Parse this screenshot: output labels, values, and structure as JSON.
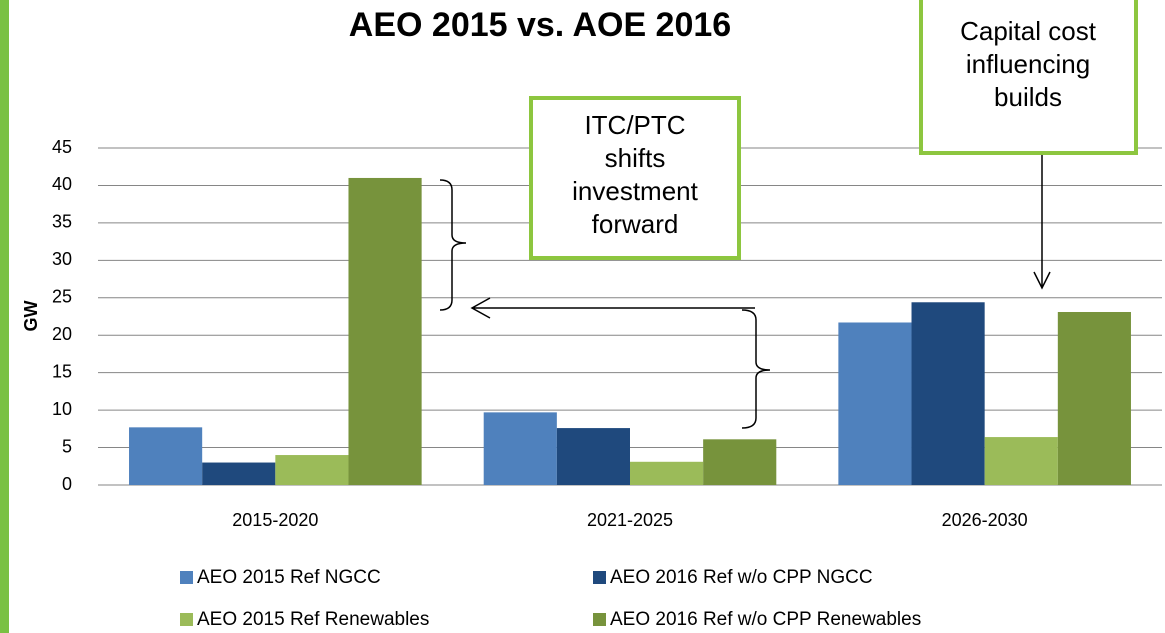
{
  "chart_data": {
    "type": "bar",
    "title": "AEO 2015 vs. AOE 2016",
    "y_label": "GW",
    "categories": [
      "2015-2020",
      "2021-2025",
      "2026-2030"
    ],
    "series": [
      {
        "name": "AEO 2015 Ref NGCC",
        "color": "#4f81bd",
        "values": [
          7.7,
          9.7,
          21.7
        ]
      },
      {
        "name": "AEO 2016 Ref w/o CPP NGCC",
        "color": "#1f497d",
        "values": [
          3.0,
          7.6,
          24.4
        ]
      },
      {
        "name": "AEO 2015 Ref Renewables",
        "color": "#9bbb59",
        "values": [
          4.0,
          3.1,
          6.4
        ]
      },
      {
        "name": "AEO 2016 Ref w/o CPP Renewables",
        "color": "#77933c",
        "values": [
          41,
          6.1,
          23.1
        ]
      }
    ],
    "ylim": [
      0,
      45
    ],
    "yticks": [
      0,
      5,
      10,
      15,
      20,
      25,
      30,
      35,
      40,
      45
    ],
    "grid": true,
    "annotations": [
      {
        "lines": [
          "ITC/PTC",
          "shifts",
          "investment",
          "forward"
        ]
      },
      {
        "lines": [
          "Capital cost",
          "influencing",
          "builds"
        ]
      }
    ]
  }
}
